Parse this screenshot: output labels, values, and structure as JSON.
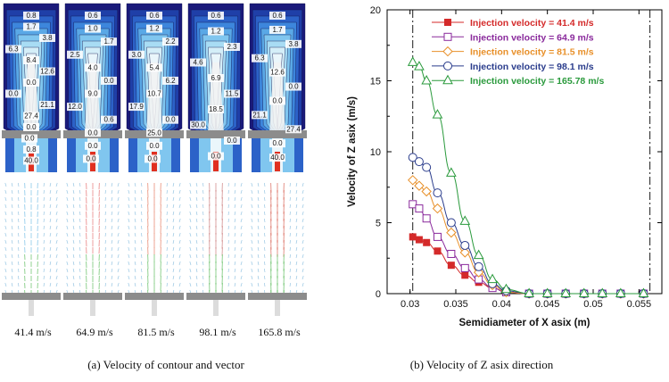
{
  "colors": {
    "palette_contour": [
      "#1a1a7a",
      "#1f3fa8",
      "#2c62c8",
      "#3d86dc",
      "#5aa8e6",
      "#80c6ef",
      "#a8dcf4",
      "#d4eef8",
      "#eaf6fb"
    ],
    "grey_band": "#8c8c8c",
    "white_core": "#f2f2f2"
  },
  "left_panel": {
    "caption": "(a) Velocity of contour and vector",
    "columns": [
      {
        "label": "41.4 m/s",
        "contour_labels": [
          "0.8",
          "1.7",
          "3.8",
          "6.3",
          "8.4",
          "12.6",
          "0.0",
          "0.0",
          "21.1",
          "27.4",
          "0.0",
          "0.0",
          "0.8",
          "40.0"
        ],
        "vector_color": "#58b0e0"
      },
      {
        "label": "64.9 m/s",
        "contour_labels": [
          "0.6",
          "1.0",
          "1.7",
          "2.5",
          "4.0",
          "0.0",
          "9.0",
          "12.0",
          "0.6",
          "0.0",
          "0.0",
          "0.0"
        ],
        "vector_color": "#e05050"
      },
      {
        "label": "81.5 m/s",
        "contour_labels": [
          "0.6",
          "1.2",
          "2.2",
          "3.0",
          "5.4",
          "6.2",
          "10.7",
          "17.9",
          "0.0",
          "25.0",
          "0.0",
          "0.0"
        ],
        "vector_color": "#e06040"
      },
      {
        "label": "98.1 m/s",
        "contour_labels": [
          "0.6",
          "1.2",
          "2.3",
          "4.6",
          "6.9",
          "11.5",
          "18.5",
          "30.0",
          "0.0",
          "0.0"
        ],
        "vector_color": "#c06060"
      },
      {
        "label": "165.8 m/s",
        "contour_labels": [
          "0.6",
          "1.7",
          "3.8",
          "6.3",
          "12.6",
          "0.0",
          "0.0",
          "21.1",
          "27.4",
          "0.0",
          "40.0"
        ],
        "vector_color": "#d04030"
      }
    ]
  },
  "right_panel": {
    "caption": "(b) Velocity of Z asix direction"
  },
  "chart_data": {
    "type": "line",
    "title": "",
    "xlabel": "Semidiameter of X asix (m)",
    "ylabel": "Velocity of Z asix (m/s)",
    "xlim": [
      0.0275,
      0.0575
    ],
    "ylim": [
      0,
      20
    ],
    "x_ticks": [
      0.03,
      0.035,
      0.04,
      0.045,
      0.05,
      0.055
    ],
    "x_tick_labels": [
      "0.03",
      "0.035",
      "0.04",
      "0.045",
      "0.05",
      "0.055"
    ],
    "y_ticks": [
      0,
      5,
      10,
      15,
      20
    ],
    "y_tick_labels": [
      "0",
      "5",
      "10",
      "15",
      "20"
    ],
    "dashdot_vlines": [
      0.0303,
      0.0562
    ],
    "legend_position": "top-right",
    "series": [
      {
        "name": "Injection velocity = 41.4 m/s",
        "color": "#d42a2a",
        "marker": "square-filled",
        "x": [
          0.0303,
          0.031,
          0.0318,
          0.033,
          0.0345,
          0.036,
          0.0375,
          0.039,
          0.0405,
          0.043,
          0.045,
          0.047,
          0.049,
          0.051,
          0.053,
          0.0555
        ],
        "y": [
          4.0,
          3.8,
          3.6,
          3.0,
          2.0,
          1.3,
          0.8,
          0.4,
          0.1,
          0.0,
          0.0,
          0.0,
          0.0,
          0.0,
          0.0,
          0.0
        ]
      },
      {
        "name": "Injection velocity = 64.9 m/s",
        "color": "#8a2a9c",
        "marker": "square-open",
        "x": [
          0.0303,
          0.031,
          0.0318,
          0.033,
          0.0345,
          0.036,
          0.0375,
          0.039,
          0.0405,
          0.043,
          0.045,
          0.047,
          0.049,
          0.051,
          0.053,
          0.0555
        ],
        "y": [
          6.3,
          6.0,
          5.3,
          4.0,
          2.8,
          1.8,
          1.0,
          0.4,
          0.1,
          0.0,
          0.0,
          0.0,
          0.0,
          0.0,
          0.0,
          0.0
        ]
      },
      {
        "name": "Injection velocity = 81.5 m/s",
        "color": "#e8902a",
        "marker": "diamond-open",
        "x": [
          0.0303,
          0.031,
          0.0318,
          0.033,
          0.0345,
          0.036,
          0.0375,
          0.039,
          0.0405,
          0.043,
          0.045,
          0.047,
          0.049,
          0.051,
          0.053,
          0.0555
        ],
        "y": [
          8.0,
          7.6,
          7.2,
          6.0,
          4.3,
          2.9,
          1.5,
          0.6,
          0.1,
          0.0,
          0.0,
          0.0,
          0.0,
          0.0,
          0.0,
          0.0
        ]
      },
      {
        "name": "Injection velocity = 98.1 m/s",
        "color": "#2a3c8c",
        "marker": "circle-open",
        "x": [
          0.0303,
          0.031,
          0.0318,
          0.033,
          0.0345,
          0.036,
          0.0375,
          0.039,
          0.0405,
          0.043,
          0.045,
          0.047,
          0.049,
          0.051,
          0.053,
          0.0555
        ],
        "y": [
          9.6,
          9.3,
          8.9,
          7.1,
          5.0,
          3.4,
          1.9,
          0.7,
          0.2,
          0.0,
          0.0,
          0.0,
          0.0,
          0.0,
          0.0,
          0.0
        ]
      },
      {
        "name": "Injection velocity = 165.78 m/s",
        "color": "#2a9a3c",
        "marker": "triangle-open",
        "x": [
          0.0303,
          0.031,
          0.0318,
          0.033,
          0.0345,
          0.036,
          0.0375,
          0.039,
          0.0405,
          0.043,
          0.045,
          0.047,
          0.049,
          0.051,
          0.053,
          0.0555
        ],
        "y": [
          16.3,
          16.0,
          15.0,
          12.6,
          8.5,
          5.1,
          2.7,
          1.0,
          0.3,
          0.0,
          0.0,
          0.0,
          0.0,
          0.0,
          0.0,
          0.0
        ]
      }
    ]
  }
}
